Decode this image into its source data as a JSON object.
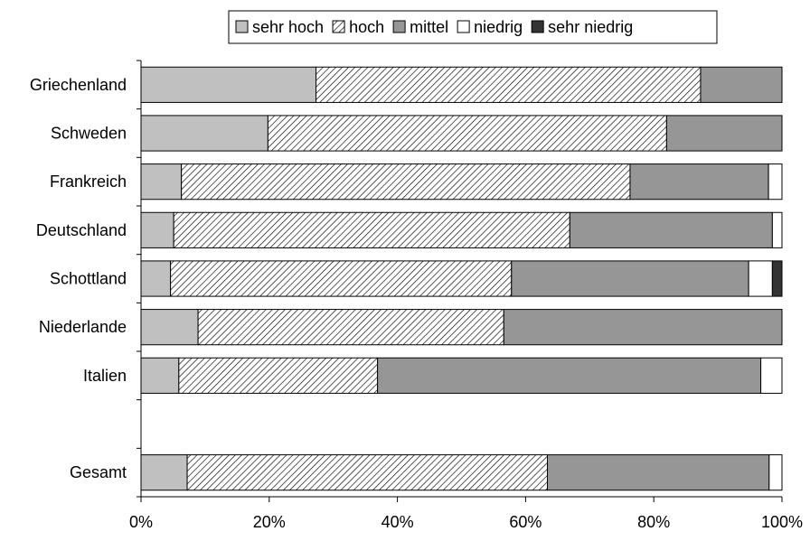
{
  "chart_data": {
    "type": "bar",
    "orientation": "horizontal",
    "stacked": "percent",
    "categories": [
      "Griechenland",
      "Schweden",
      "Frankreich",
      "Deutschland",
      "Schottland",
      "Niederlande",
      "Italien",
      "",
      "Gesamt"
    ],
    "series": [
      {
        "name": "sehr hoch",
        "color": "#c0c0c0",
        "pattern": "solid",
        "values": [
          27.3,
          19.8,
          6.3,
          5.1,
          4.6,
          8.9,
          5.9,
          null,
          7.2
        ]
      },
      {
        "name": "hoch",
        "color": "#ffffff",
        "pattern": "diagonal-hatch",
        "values": [
          60.0,
          62.2,
          70.0,
          61.8,
          53.2,
          47.7,
          31.0,
          null,
          56.2
        ]
      },
      {
        "name": "mittel",
        "color": "#969696",
        "pattern": "solid",
        "values": [
          12.7,
          18.0,
          21.6,
          31.6,
          37.0,
          43.4,
          59.8,
          null,
          34.6
        ]
      },
      {
        "name": "niedrig",
        "color": "#ffffff",
        "pattern": "solid",
        "values": [
          0,
          0,
          2.1,
          1.5,
          3.7,
          0,
          3.3,
          null,
          2.0
        ]
      },
      {
        "name": "sehr niedrig",
        "color": "#333333",
        "pattern": "solid",
        "values": [
          0,
          0,
          0,
          0,
          1.5,
          0,
          0,
          null,
          0
        ]
      }
    ],
    "x_ticks": [
      "0%",
      "20%",
      "40%",
      "60%",
      "80%",
      "100%"
    ],
    "xlim": [
      0,
      100
    ],
    "legend_position": "top-center",
    "grid": false
  }
}
